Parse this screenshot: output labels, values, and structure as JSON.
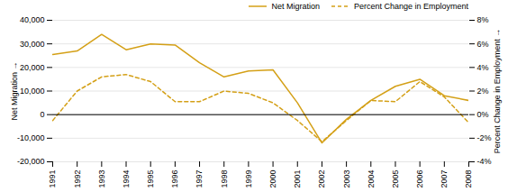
{
  "chart_data": {
    "type": "line",
    "x": [
      1991,
      1992,
      1993,
      1994,
      1995,
      1996,
      1997,
      1998,
      1999,
      2000,
      2001,
      2002,
      2003,
      2004,
      2005,
      2006,
      2007,
      2008
    ],
    "xlim": [
      1991,
      2008
    ],
    "xticks": [
      1991,
      1992,
      1993,
      1994,
      1995,
      1996,
      1997,
      1998,
      1999,
      2000,
      2001,
      2002,
      2003,
      2004,
      2005,
      2006,
      2007,
      2008
    ],
    "series": [
      {
        "name": "Net Migration",
        "color": "#D4A017",
        "line_style": "solid",
        "axis": "y",
        "values": [
          25500,
          27000,
          34000,
          27500,
          30000,
          29500,
          22000,
          16000,
          18500,
          19000,
          5000,
          -12000,
          -2000,
          6000,
          12000,
          15000,
          8000,
          6000
        ]
      },
      {
        "name": "Percent Change in Employment",
        "color": "#D4A017",
        "line_style": "dashed",
        "axis": "y2",
        "values": [
          -0.5,
          2.0,
          3.2,
          3.4,
          2.8,
          1.1,
          1.1,
          2.0,
          1.8,
          1.0,
          -0.5,
          -2.3,
          -0.5,
          1.2,
          1.1,
          2.8,
          1.5,
          -0.7
        ]
      }
    ],
    "ylabel": "Net Migration",
    "y2label": "Percent Change in Employment",
    "ylim": [
      -20000,
      40000
    ],
    "yticks": [
      {
        "value": -20000,
        "label": "-20,000"
      },
      {
        "value": -10000,
        "label": "-10,000"
      },
      0,
      {
        "value": 10000,
        "label": "10,000"
      },
      {
        "value": 20000,
        "label": "20,000"
      },
      {
        "value": 30000,
        "label": "30,000"
      },
      {
        "value": 40000,
        "label": "40,000"
      }
    ],
    "y2lim": [
      -4,
      8
    ],
    "y2ticks": [
      {
        "value": -4,
        "label": "-4%"
      },
      {
        "value": -2,
        "label": "-2%"
      },
      {
        "value": 0,
        "label": "0%"
      },
      {
        "value": 2,
        "label": "2%"
      },
      {
        "value": 4,
        "label": "4%"
      },
      {
        "value": 6,
        "label": "6%"
      },
      {
        "value": 8,
        "label": "8%"
      }
    ],
    "grid": true,
    "legend": "upper right"
  }
}
